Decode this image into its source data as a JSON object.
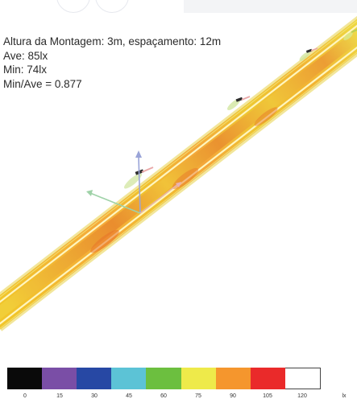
{
  "info": {
    "line1": "Altura da Montagem: 3m, espaçamento: 12m",
    "line2": "Ave: 85lx",
    "line3": "Min: 74lx",
    "line4": "Min/Ave = 0.877"
  },
  "legend": {
    "colors": [
      "#0a0a0a",
      "#7a4ea6",
      "#2748a4",
      "#5cc3d6",
      "#6cbf3f",
      "#eeea4a",
      "#f5962d",
      "#ea2a2a",
      "#ffffff"
    ],
    "ticks": [
      "0",
      "15",
      "30",
      "45",
      "60",
      "75",
      "90",
      "105",
      "120"
    ],
    "unit": "lx"
  }
}
